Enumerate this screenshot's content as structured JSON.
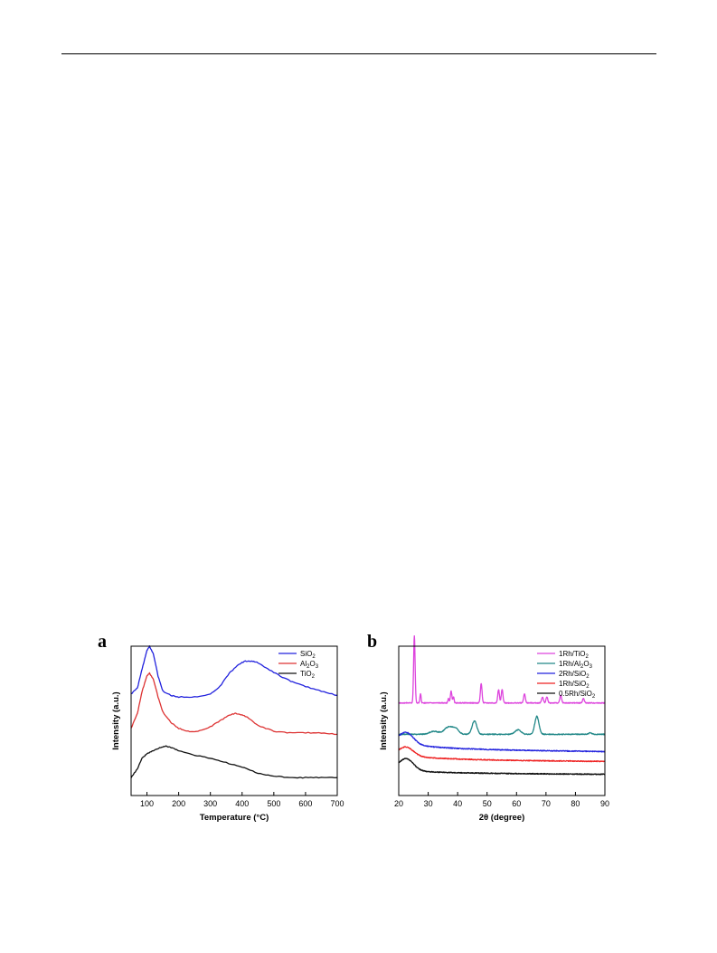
{
  "chart_data": [
    {
      "panel_label": "a",
      "type": "line",
      "xlabel": "Temperature (°C)",
      "ylabel": "Intensity (a.u.)",
      "xlim": [
        50,
        700
      ],
      "xticks": [
        100,
        200,
        300,
        400,
        500,
        600,
        700
      ],
      "yticks_shown": false,
      "legend_position": "top-right",
      "series": [
        {
          "name": "SiO",
          "sub": "2",
          "color": "#2222dd",
          "x": [
            50,
            70,
            85,
            100,
            108,
            120,
            135,
            150,
            175,
            200,
            250,
            300,
            330,
            360,
            390,
            410,
            430,
            450,
            480,
            520,
            560,
            600,
            650,
            700
          ],
          "y": [
            0.68,
            0.72,
            0.85,
            0.97,
            1.0,
            0.95,
            0.8,
            0.7,
            0.67,
            0.66,
            0.66,
            0.68,
            0.73,
            0.82,
            0.88,
            0.9,
            0.9,
            0.89,
            0.85,
            0.8,
            0.76,
            0.73,
            0.7,
            0.67
          ]
        },
        {
          "name": "Al",
          "sub": "2",
          "name2": "O",
          "sub2": "3",
          "color": "#dd3333",
          "x": [
            50,
            70,
            85,
            100,
            108,
            120,
            135,
            150,
            175,
            200,
            230,
            260,
            300,
            330,
            360,
            380,
            400,
            420,
            450,
            500,
            550,
            600,
            650,
            700
          ],
          "y": [
            0.45,
            0.55,
            0.7,
            0.8,
            0.82,
            0.78,
            0.66,
            0.56,
            0.49,
            0.45,
            0.43,
            0.43,
            0.46,
            0.5,
            0.54,
            0.55,
            0.54,
            0.52,
            0.47,
            0.43,
            0.42,
            0.42,
            0.42,
            0.41
          ]
        },
        {
          "name": "TiO",
          "sub": "2",
          "color": "#111111",
          "x": [
            50,
            70,
            85,
            100,
            120,
            140,
            160,
            180,
            200,
            250,
            300,
            350,
            400,
            450,
            500,
            550,
            600,
            650,
            700
          ],
          "y": [
            0.12,
            0.18,
            0.25,
            0.28,
            0.3,
            0.32,
            0.33,
            0.32,
            0.3,
            0.27,
            0.25,
            0.22,
            0.19,
            0.15,
            0.13,
            0.12,
            0.12,
            0.12,
            0.12
          ]
        }
      ]
    },
    {
      "panel_label": "b",
      "type": "line",
      "xlabel": "2θ (degree)",
      "ylabel": "Intensity (a.u.)",
      "xlim": [
        20,
        90
      ],
      "xticks": [
        20,
        30,
        40,
        50,
        60,
        70,
        80,
        90
      ],
      "yticks_shown": false,
      "legend_position": "top-right",
      "series": [
        {
          "name": "1Rh/TiO",
          "sub": "2",
          "color": "#dd44dd",
          "baseline": 0.62,
          "peaks": [
            [
              25.3,
              0.45,
              0.25
            ],
            [
              27.4,
              0.06,
              0.2
            ],
            [
              36.9,
              0.03,
              0.2
            ],
            [
              37.8,
              0.08,
              0.25
            ],
            [
              38.6,
              0.04,
              0.2
            ],
            [
              48.0,
              0.13,
              0.28
            ],
            [
              53.9,
              0.09,
              0.28
            ],
            [
              55.1,
              0.09,
              0.28
            ],
            [
              62.7,
              0.06,
              0.3
            ],
            [
              68.8,
              0.04,
              0.3
            ],
            [
              70.3,
              0.04,
              0.3
            ],
            [
              75.0,
              0.05,
              0.3
            ],
            [
              82.7,
              0.03,
              0.3
            ]
          ]
        },
        {
          "name": "1Rh/Al",
          "sub": "2",
          "name2": "O",
          "sub2": "3",
          "color": "#228888",
          "baseline": 0.41,
          "peaks": [
            [
              32.0,
              0.02,
              1.5
            ],
            [
              37.0,
              0.05,
              1.5
            ],
            [
              39.5,
              0.03,
              1.0
            ],
            [
              45.7,
              0.09,
              0.8
            ],
            [
              60.5,
              0.03,
              1.0
            ],
            [
              66.9,
              0.12,
              0.7
            ],
            [
              85.0,
              0.01,
              0.5
            ]
          ]
        },
        {
          "name": "2Rh/SiO",
          "sub": "2",
          "color": "#2222dd",
          "baseline": 0.31,
          "hump": [
            22.5,
            0.08,
            2.5
          ],
          "decay": 0.04
        },
        {
          "name": "1Rh/SiO",
          "sub": "2",
          "color": "#ee2222",
          "baseline": 0.24,
          "hump": [
            22.5,
            0.06,
            2.5
          ],
          "decay": 0.03
        },
        {
          "name": "0.5Rh/SiO",
          "sub": "2",
          "color": "#111111",
          "baseline": 0.15,
          "hump": [
            22.5,
            0.08,
            2.5
          ],
          "decay": 0.02
        }
      ]
    }
  ]
}
